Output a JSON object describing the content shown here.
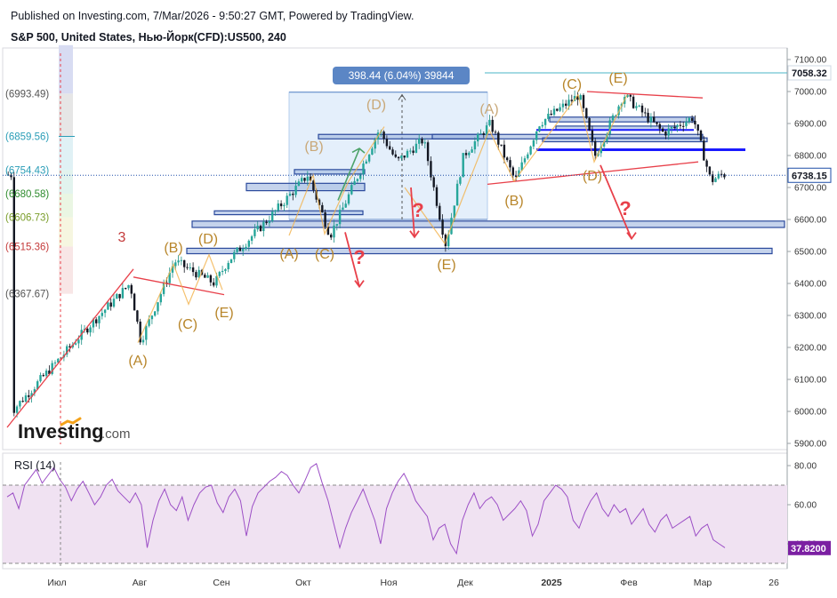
{
  "header": {
    "published": "Published on Investing.com, 7/Mar/2026 - 9:50:27 GMT, Powered by TradingView.",
    "symbol": "S&P 500, United States, Нью-Йорк(CFD):US500, 240"
  },
  "logo": {
    "text": "Investing",
    "suffix": ".com"
  },
  "colors": {
    "up": "#26a69a",
    "down": "#131722",
    "wave_label": "#b8862b",
    "wave_label_light": "#c9a878",
    "trend_red": "#e8404a",
    "zone_blue": "#2b4a9c",
    "rsi_line": "#9c4fc6",
    "rsi_band": "#f0e2f2",
    "price_tag": "#1e4ea8",
    "rsi_tag": "#7b1fa2",
    "measure_bg": "#dbe9f9",
    "measure_label": "#5b86c5"
  },
  "chart_data": [
    {
      "type": "candlestick",
      "title": "S&P 500, United States, Нью-Йорк(CFD):US500, 240",
      "x_ticks": [
        "Июл",
        "Авг",
        "Сен",
        "Окт",
        "Ноя",
        "Дек",
        "2025",
        "Фев",
        "Мар",
        "26"
      ],
      "y_ticks": [
        5900,
        6000,
        6100,
        6200,
        6300,
        6400,
        6500,
        6600,
        6700,
        6800,
        6900,
        7000,
        7100
      ],
      "y_range": [
        5875,
        7145
      ],
      "last_price": "6738.15",
      "marked_level": "7058.32",
      "price_path_anchors": [
        {
          "x": "Июл",
          "y": 6000
        },
        {
          "x": "Июл-mid",
          "y": 6270
        },
        {
          "x": "Авг-early",
          "y": 6400
        },
        {
          "x": "Авг",
          "y": 6220
        },
        {
          "x": "Авг-mid",
          "y": 6470
        },
        {
          "x": "Авг-end",
          "y": 6400
        },
        {
          "x": "Сен",
          "y": 6470
        },
        {
          "x": "Сен-mid",
          "y": 6600
        },
        {
          "x": "Окт",
          "y": 6740
        },
        {
          "x": "Окт-mid",
          "y": 6550
        },
        {
          "x": "Окт-end",
          "y": 6880
        },
        {
          "x": "Ноя",
          "y": 6780
        },
        {
          "x": "Ноя-mid",
          "y": 6850
        },
        {
          "x": "Ноя-end",
          "y": 6520
        },
        {
          "x": "Дек",
          "y": 6800
        },
        {
          "x": "Дек-mid",
          "y": 6900
        },
        {
          "x": "Дек-end",
          "y": 6720
        },
        {
          "x": "2025",
          "y": 6900
        },
        {
          "x": "Янв-mid",
          "y": 6990
        },
        {
          "x": "Янв-end",
          "y": 6800
        },
        {
          "x": "Фев",
          "y": 6990
        },
        {
          "x": "Фев-mid",
          "y": 6870
        },
        {
          "x": "Фев-end",
          "y": 6920
        },
        {
          "x": "Мар",
          "y": 6720
        },
        {
          "x": "Мар-early",
          "y": 6740
        }
      ],
      "fib_levels": [
        {
          "label": "(6993.49)",
          "value": 6993.49,
          "color": "#555555"
        },
        {
          "label": "(6859.56)",
          "value": 6859.56,
          "color": "#2a9db7"
        },
        {
          "label": "(6754.43)",
          "value": 6754.43,
          "color": "#2a9db7"
        },
        {
          "label": "(6680.58)",
          "value": 6680.58,
          "color": "#2e8b2e"
        },
        {
          "label": "(6606.73)",
          "value": 6606.73,
          "color": "#7a9d2a"
        },
        {
          "label": "(6515.36)",
          "value": 6515.36,
          "color": "#c43a3a"
        },
        {
          "label": "(6367.67)",
          "value": 6367.67,
          "color": "#555555"
        }
      ],
      "measure": {
        "label": "398.44 (6.04%) 39844",
        "from": 6600,
        "to": 6998
      },
      "wave_labels": [
        {
          "text": "3",
          "color": "red"
        },
        {
          "text": "(A)"
        },
        {
          "text": "(B)"
        },
        {
          "text": "(C)"
        },
        {
          "text": "(D)"
        },
        {
          "text": "(E)"
        },
        {
          "text": "(A)"
        },
        {
          "text": "(B)"
        },
        {
          "text": "(C)"
        },
        {
          "text": "(D)"
        },
        {
          "text": "(E)"
        },
        {
          "text": "(A)"
        },
        {
          "text": "(B)"
        },
        {
          "text": "(C)"
        },
        {
          "text": "(D)"
        },
        {
          "text": "(E)"
        }
      ],
      "question_marks": [
        "?",
        "?",
        "?"
      ]
    },
    {
      "type": "line",
      "title": "RSI (14)",
      "y_ticks": [
        40.0,
        60.0,
        80.0
      ],
      "y_range": [
        34,
        83
      ],
      "bands": [
        30,
        70
      ],
      "last_value": "37.8200",
      "values": [
        64,
        66,
        58,
        70,
        74,
        78,
        71,
        75,
        79,
        73,
        69,
        62,
        68,
        72,
        66,
        60,
        64,
        70,
        73,
        67,
        64,
        61,
        66,
        60,
        38,
        52,
        62,
        68,
        60,
        57,
        64,
        52,
        60,
        66,
        69,
        70,
        61,
        56,
        64,
        68,
        62,
        44,
        59,
        66,
        69,
        72,
        74,
        77,
        75,
        70,
        66,
        72,
        79,
        81,
        71,
        62,
        50,
        38,
        48,
        56,
        62,
        68,
        60,
        52,
        40,
        58,
        66,
        72,
        76,
        70,
        62,
        58,
        54,
        42,
        48,
        50,
        40,
        35,
        52,
        60,
        66,
        58,
        62,
        64,
        60,
        52,
        55,
        58,
        62,
        57,
        44,
        50,
        62,
        66,
        70,
        68,
        64,
        52,
        48,
        56,
        62,
        66,
        58,
        54,
        60,
        56,
        58,
        50,
        54,
        58,
        50,
        46,
        52,
        55,
        48,
        50,
        52,
        54,
        44,
        48,
        50,
        42,
        40,
        38
      ]
    }
  ],
  "rsi_panel": {
    "label": "RSI (14)"
  }
}
